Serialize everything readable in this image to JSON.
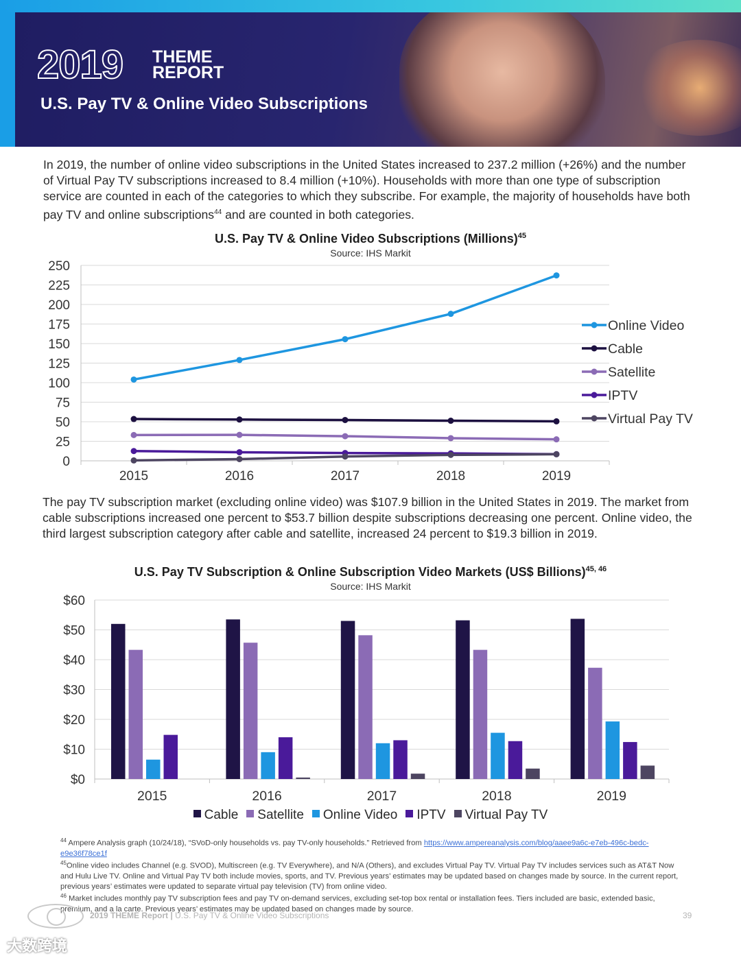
{
  "header": {
    "year": "2019",
    "theme_line1": "THEME",
    "theme_line2": "REPORT",
    "title": "U.S. Pay TV & Online Video Subscriptions"
  },
  "paragraph1": {
    "text_a": "In 2019, the number of online video subscriptions in the United States increased to 237.2 million (+26%) and the number of Virtual Pay TV subscriptions increased to 8.4 million (+10%). Households with more than one type of subscription service are counted in each of the categories to which they subscribe. For example, the majority of households have both pay TV and online subscriptions",
    "sup": "44",
    "text_b": " and are counted in both categories."
  },
  "paragraph2": {
    "text": "The pay TV subscription market (excluding online video) was $107.9 billion in the United States in 2019. The market from cable subscriptions increased one percent to $53.7 billion despite subscriptions decreasing one percent. Online video, the third largest subscription category after cable and satellite, increased 24 percent to $19.3 billion in 2019."
  },
  "chart_data": [
    {
      "type": "line",
      "title": "U.S. Pay TV & Online Video Subscriptions (Millions)",
      "title_sup": "45",
      "source": "Source: IHS Markit",
      "x": [
        "2015",
        "2016",
        "2017",
        "2018",
        "2019"
      ],
      "ylim": [
        0,
        250
      ],
      "yticks": [
        "250",
        "225",
        "200",
        "175",
        "150",
        "125",
        "100",
        "75",
        "50",
        "25",
        "0"
      ],
      "grid": true,
      "legend_position": "right",
      "series": [
        {
          "name": "Online Video",
          "color": "#1e96e0",
          "values": [
            104,
            129,
            155.6,
            188,
            237.2
          ]
        },
        {
          "name": "Cable",
          "color": "#1c1040",
          "values": [
            53.5,
            52.8,
            52.2,
            51.3,
            50.5
          ]
        },
        {
          "name": "Satellite",
          "color": "#8b6bb5",
          "values": [
            33,
            33.2,
            31.5,
            29,
            27.5
          ]
        },
        {
          "name": "IPTV",
          "color": "#4a1a9a",
          "values": [
            12.5,
            11,
            10,
            9.5,
            8.5
          ]
        },
        {
          "name": "Virtual Pay TV",
          "color": "#4d4561",
          "values": [
            0.5,
            2.2,
            5.5,
            7.6,
            8.4
          ]
        }
      ]
    },
    {
      "type": "bar",
      "title": "U.S. Pay TV Subscription & Online Subscription Video Markets (US$ Billions)",
      "title_sup": "45, 46",
      "source": "Source: IHS Markit",
      "categories": [
        "2015",
        "2016",
        "2017",
        "2018",
        "2019"
      ],
      "ylim": [
        0,
        60
      ],
      "yticks": [
        "$60",
        "$50",
        "$40",
        "$30",
        "$20",
        "$10",
        "$0"
      ],
      "grid": true,
      "legend_position": "bottom",
      "series": [
        {
          "name": "Cable",
          "color": "#1f1446",
          "values": [
            52,
            53.5,
            53,
            53.2,
            53.7
          ]
        },
        {
          "name": "Satellite",
          "color": "#8b6bb5",
          "values": [
            43.3,
            45.7,
            48.2,
            43.3,
            37.3
          ]
        },
        {
          "name": "Online Video",
          "color": "#1e96e0",
          "values": [
            6.5,
            9,
            12,
            15.5,
            19.3
          ]
        },
        {
          "name": "IPTV",
          "color": "#4a1a9a",
          "values": [
            14.8,
            14,
            13,
            12.7,
            12.4
          ]
        },
        {
          "name": "Virtual Pay TV",
          "color": "#4d4561",
          "values": [
            0,
            0.5,
            1.8,
            3.5,
            4.5
          ]
        }
      ]
    }
  ],
  "footnotes": {
    "n44_sup": "44",
    "n44_text": " Ampere Analysis graph (10/24/18), “SVoD-only households vs. pay TV-only households.” Retrieved from ",
    "n44_link": "https://www.ampereanalysis.com/blog/aaee9a6c-e7eb-496c-bedc-e9e36f78ce1f",
    "n45_sup": "45",
    "n45_text": "Online video includes Channel (e.g. SVOD), Multiscreen (e.g. TV Everywhere), and N/A (Others), and excludes Virtual Pay TV. Virtual Pay TV includes services such as AT&T Now and Hulu Live TV. Online and Virtual Pay TV both include movies, sports, and TV. Previous years’ estimates may be updated based on changes made by source. In the current report, previous years’ estimates were updated to separate virtual pay television (TV)  from online video.",
    "n46_sup": "46",
    "n46_text": " Market includes monthly pay TV subscription fees and pay TV on-demand services, excluding set-top box rental or installation fees. Tiers included are basic, extended basic, premium, and a la carte. Previous years’ estimates may be updated based on changes made by source."
  },
  "footer": {
    "report_name": "2019 THEME Report | ",
    "section": "U.S. Pay TV & Online Video Subscriptions",
    "page": "39",
    "watermark": "大数跨境"
  }
}
